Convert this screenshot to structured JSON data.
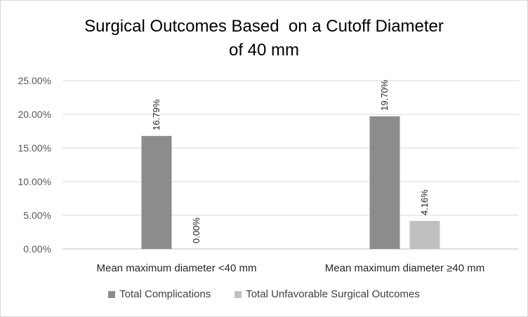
{
  "chart_data": {
    "type": "bar",
    "title_lines": [
      "Surgical Outcomes Based  on a Cutoff Diameter",
      "of 40 mm"
    ],
    "categories": [
      "Mean maximum diameter <40 mm",
      "Mean maximum diameter ≥40 mm"
    ],
    "series": [
      {
        "name": "Total Complications",
        "values": [
          16.79,
          19.7
        ],
        "labels": [
          "16.79%",
          "19.70%"
        ],
        "color": "#8c8c8c"
      },
      {
        "name": "Total Unfavorable Surgical Outcomes",
        "values": [
          0.0,
          4.16
        ],
        "labels": [
          "0.00%",
          "4.16%"
        ],
        "color": "#c0c0c0"
      }
    ],
    "yticks": [
      "0.00%",
      "5.00%",
      "10.00%",
      "15.00%",
      "20.00%",
      "25.00%"
    ],
    "ylim": [
      0,
      25
    ],
    "grid": true,
    "legend_position": "bottom"
  }
}
